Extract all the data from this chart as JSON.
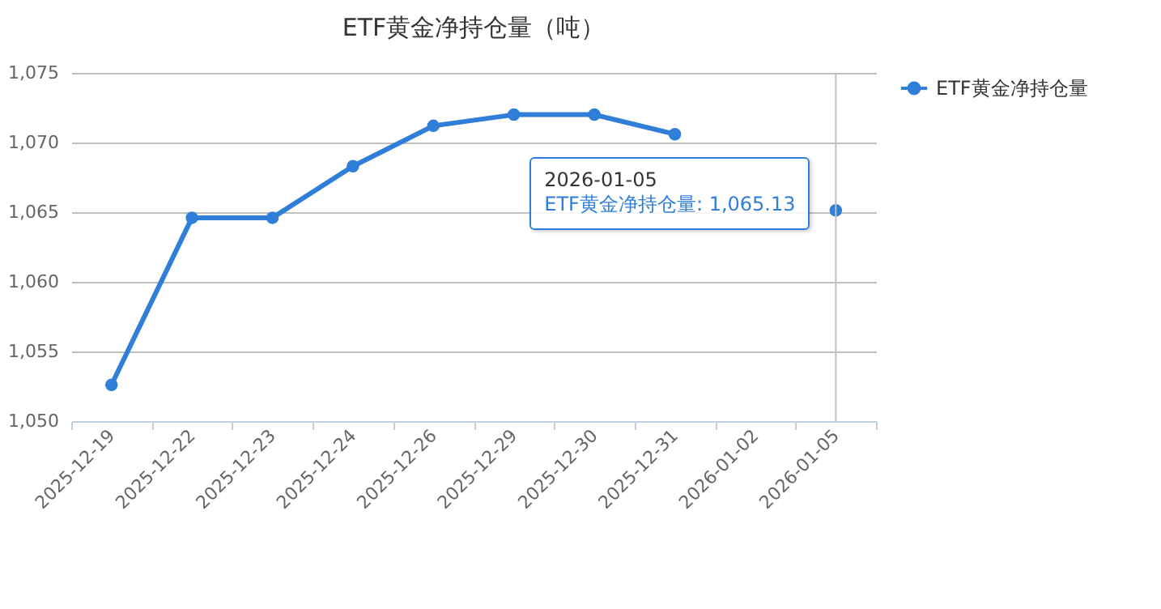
{
  "chart_data": {
    "type": "line",
    "title": "ETF黄金净持仓量（吨）",
    "categories": [
      "2025-12-19",
      "2025-12-22",
      "2025-12-23",
      "2025-12-24",
      "2025-12-26",
      "2025-12-29",
      "2025-12-30",
      "2025-12-31",
      "2026-01-02",
      "2026-01-05"
    ],
    "series": [
      {
        "name": "ETF黄金净持仓量",
        "color": "#2f7ed8",
        "values": [
          1052.6,
          1064.6,
          1064.6,
          1068.3,
          1071.2,
          1072.0,
          1072.0,
          1070.6,
          null,
          1065.13
        ]
      }
    ],
    "ylim": [
      1050,
      1075
    ],
    "yticks": [
      {
        "value": 1050,
        "label": "1,050"
      },
      {
        "value": 1055,
        "label": "1,055"
      },
      {
        "value": 1060,
        "label": "1,060"
      },
      {
        "value": 1065,
        "label": "1,065"
      },
      {
        "value": 1070,
        "label": "1,070"
      },
      {
        "value": 1075,
        "label": "1,075"
      }
    ],
    "grid": "y",
    "legend": "right",
    "marker": "circle",
    "line_style": "solid",
    "ref_lines": [
      {
        "axis": "x",
        "value": "2026-01-05",
        "color": "#c0c0c0"
      }
    ],
    "annotations": [
      {
        "text": "2026-01-05\nETF黄金净持仓量: 1,065.13",
        "x": "2026-01-05",
        "y": 1065.13
      }
    ]
  }
}
